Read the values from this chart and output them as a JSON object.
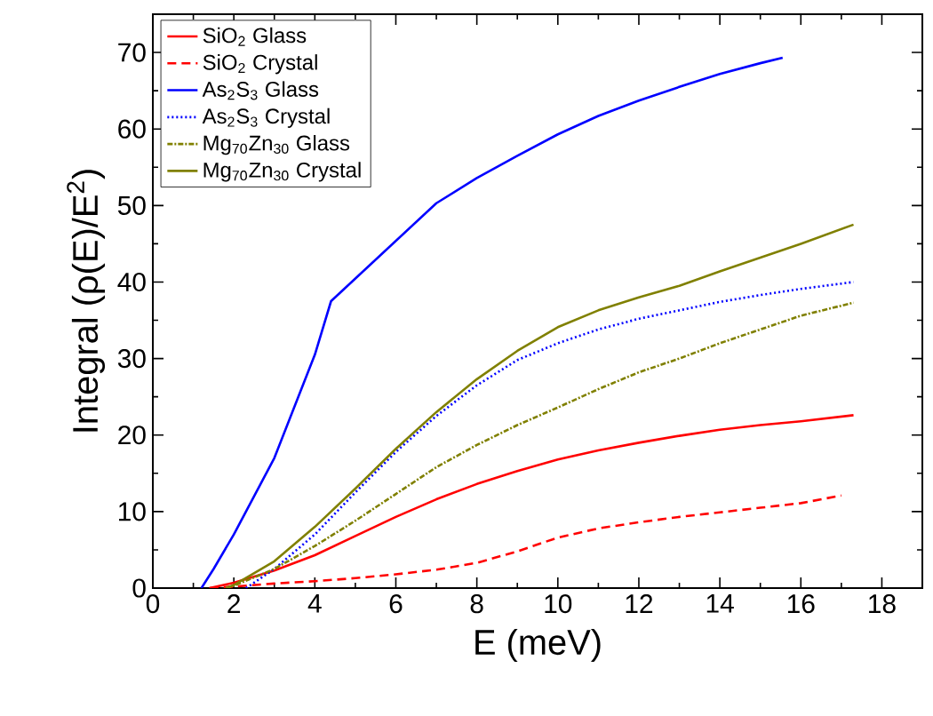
{
  "chart_data": {
    "type": "line",
    "xlabel": "E (meV)",
    "ylabel": "Integral (ρ(E)/E$^{2}$)",
    "xlim": [
      0,
      19
    ],
    "ylim": [
      0,
      75
    ],
    "xticks": [
      0,
      2,
      4,
      6,
      8,
      10,
      12,
      14,
      16,
      18
    ],
    "yticks": [
      0,
      10,
      20,
      30,
      40,
      50,
      60,
      70
    ],
    "grid": false,
    "legend": "top left",
    "marker": "none",
    "series": [
      {
        "name": "SiO$_{2}$  Glass",
        "color": "#ff0000",
        "line_style": "solid",
        "x": [
          1.4,
          2,
          3,
          4,
          5,
          6,
          7,
          8,
          9,
          10,
          11,
          12,
          13,
          14,
          15,
          16,
          17.3
        ],
        "values": [
          0,
          0.7,
          2.3,
          4.3,
          6.8,
          9.3,
          11.6,
          13.6,
          15.3,
          16.8,
          18,
          19,
          19.9,
          20.7,
          21.3,
          21.8,
          22.6
        ]
      },
      {
        "name": "SiO$_{2}$  Crystal",
        "color": "#ff0000",
        "line_style": "dashed",
        "x": [
          1.4,
          2,
          3,
          4,
          5,
          6,
          7,
          8,
          9,
          10,
          11,
          12,
          13,
          14,
          15,
          16,
          17
        ],
        "values": [
          0,
          0.2,
          0.6,
          0.9,
          1.3,
          1.8,
          2.4,
          3.3,
          4.8,
          6.6,
          7.8,
          8.6,
          9.3,
          9.9,
          10.5,
          11.1,
          12.1
        ]
      },
      {
        "name": "As$_{2}$S$_{3}$  Glass",
        "color": "#0000ff",
        "line_style": "solid",
        "x": [
          1.2,
          1.5,
          2,
          3,
          4,
          4.4,
          7,
          8,
          9,
          10,
          11,
          12,
          13,
          14,
          15,
          15.55
        ],
        "values": [
          0,
          2.5,
          7,
          17,
          30.5,
          37.5,
          50.3,
          53.6,
          56.5,
          59.3,
          61.7,
          63.7,
          65.5,
          67.2,
          68.6,
          69.3
        ]
      },
      {
        "name": "As$_{2}$S$_{3}$  Crystal",
        "color": "#0000ff",
        "line_style": "dotted",
        "x": [
          2.3,
          3,
          4,
          5,
          6,
          7,
          8,
          9,
          10,
          11,
          12,
          13,
          14,
          15,
          16,
          17.3
        ],
        "values": [
          0,
          2.5,
          7,
          12.5,
          17.8,
          22.5,
          26.5,
          29.8,
          32,
          33.8,
          35.2,
          36.3,
          37.4,
          38.3,
          39.1,
          40
        ]
      },
      {
        "name": "Mg$_{70}$Zn$_{30}$  Glass",
        "color": "#808000",
        "line_style": "dashdotted",
        "x": [
          1.8,
          2,
          3,
          4,
          5,
          6,
          7,
          8,
          9,
          10,
          11,
          12,
          13,
          14,
          15,
          16,
          17.3
        ],
        "values": [
          0,
          0.3,
          2.5,
          5.5,
          8.8,
          12.3,
          15.8,
          18.7,
          21.3,
          23.6,
          26,
          28.2,
          30,
          32,
          33.8,
          35.6,
          37.3
        ]
      },
      {
        "name": "Mg$_{70}$Zn$_{30}$  Crystal",
        "color": "#808000",
        "line_style": "solid",
        "x": [
          1.8,
          2,
          3,
          4,
          5,
          6,
          7,
          8,
          9,
          10,
          11,
          12,
          13,
          14,
          15,
          16,
          17.3
        ],
        "values": [
          0,
          0.4,
          3.5,
          8,
          13,
          18.2,
          23,
          27.3,
          31,
          34.1,
          36.3,
          38,
          39.5,
          41.4,
          43.2,
          45,
          47.5
        ]
      }
    ]
  }
}
